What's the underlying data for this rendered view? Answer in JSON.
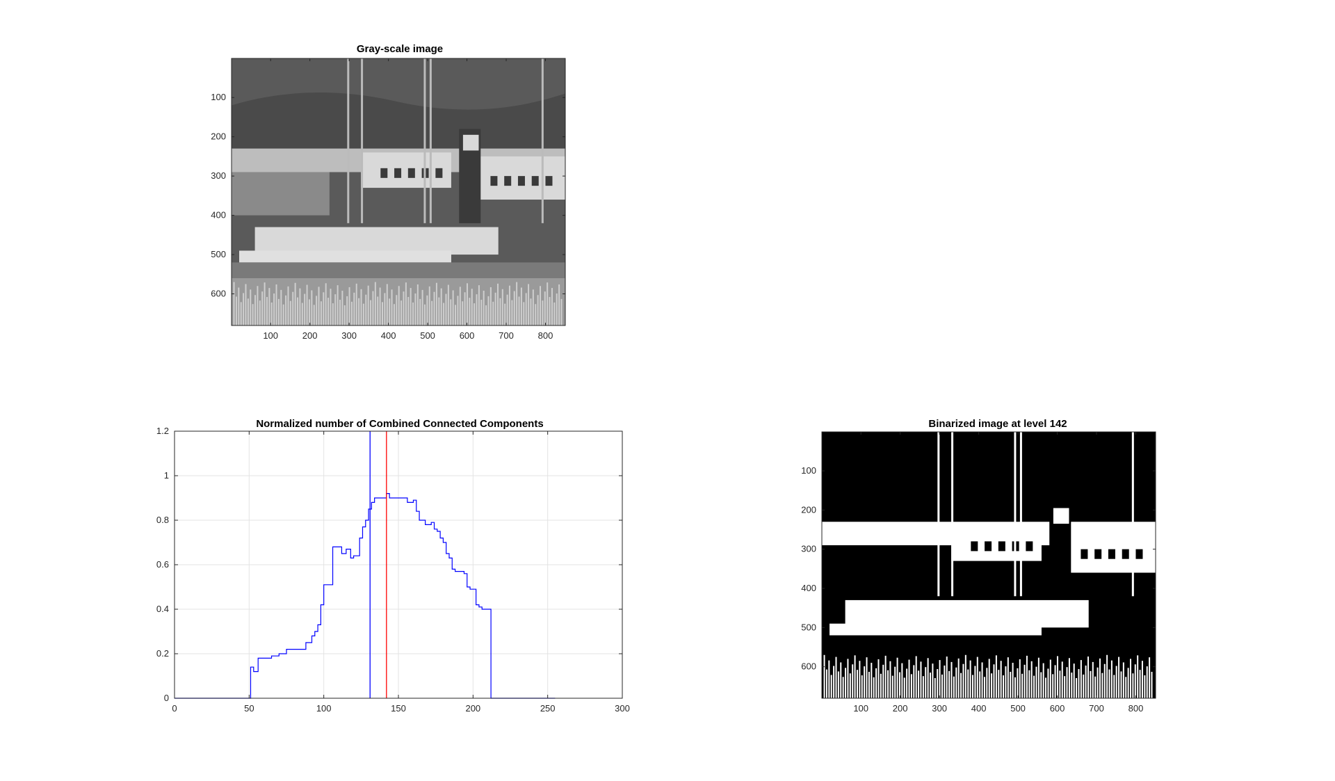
{
  "figure": {
    "panels": [
      {
        "id": "grayscale",
        "title": "Gray-scale image",
        "xticks": [
          100,
          200,
          300,
          400,
          500,
          600,
          700,
          800
        ],
        "yticks": [
          100,
          200,
          300,
          400,
          500,
          600
        ],
        "xlim": [
          0.5,
          850.5
        ],
        "ylim": [
          0.5,
          680.5
        ],
        "content": "grayscale photograph of boats at a harbor"
      },
      {
        "id": "binarized",
        "title": "Binarized image at level 142",
        "xticks": [
          100,
          200,
          300,
          400,
          500,
          600,
          700,
          800
        ],
        "yticks": [
          100,
          200,
          300,
          400,
          500,
          600
        ],
        "xlim": [
          0.5,
          850.5
        ],
        "ylim": [
          0.5,
          680.5
        ],
        "content": "black and white thresholded photograph"
      }
    ]
  },
  "chart_data": {
    "type": "line",
    "title": "Normalized number of Combined Connected Components",
    "xlabel": "",
    "ylabel": "",
    "xlim": [
      0,
      300
    ],
    "ylim": [
      0,
      1.2
    ],
    "xticks": [
      0,
      50,
      100,
      150,
      200,
      250,
      300
    ],
    "yticks": [
      0,
      0.2,
      0.4,
      0.6,
      0.8,
      1,
      1.2
    ],
    "grid": true,
    "series": [
      {
        "color": "#0000ff",
        "x": [
          0,
          50,
          51,
          53,
          56,
          60,
          65,
          70,
          75,
          80,
          85,
          88,
          90,
          92,
          94,
          96,
          98,
          100,
          104,
          106,
          110,
          112,
          115,
          118,
          120,
          124,
          126,
          128,
          130,
          132,
          134,
          138,
          142,
          144,
          148,
          152,
          156,
          160,
          162,
          164,
          168,
          172,
          174,
          176,
          178,
          180,
          182,
          184,
          186,
          188,
          190,
          192,
          194,
          196,
          198,
          200,
          202,
          204,
          206,
          208,
          210,
          212,
          214,
          216,
          255
        ],
        "y": [
          0,
          0,
          0.14,
          0.12,
          0.18,
          0.18,
          0.19,
          0.2,
          0.22,
          0.22,
          0.22,
          0.25,
          0.25,
          0.28,
          0.3,
          0.33,
          0.42,
          0.51,
          0.51,
          0.68,
          0.68,
          0.65,
          0.67,
          0.63,
          0.64,
          0.72,
          0.77,
          0.8,
          0.85,
          0.88,
          0.9,
          0.9,
          0.92,
          0.9,
          0.9,
          0.9,
          0.88,
          0.89,
          0.84,
          0.8,
          0.78,
          0.79,
          0.76,
          0.75,
          0.72,
          0.7,
          0.65,
          0.63,
          0.58,
          0.57,
          0.57,
          0.57,
          0.56,
          0.5,
          0.49,
          0.49,
          0.42,
          0.41,
          0.4,
          0.4,
          0.4,
          0.0,
          0.0,
          0.0,
          0.0
        ]
      }
    ],
    "vlines": [
      {
        "x": 131,
        "color": "#0000ff"
      },
      {
        "x": 142,
        "color": "#ff0000"
      }
    ]
  }
}
